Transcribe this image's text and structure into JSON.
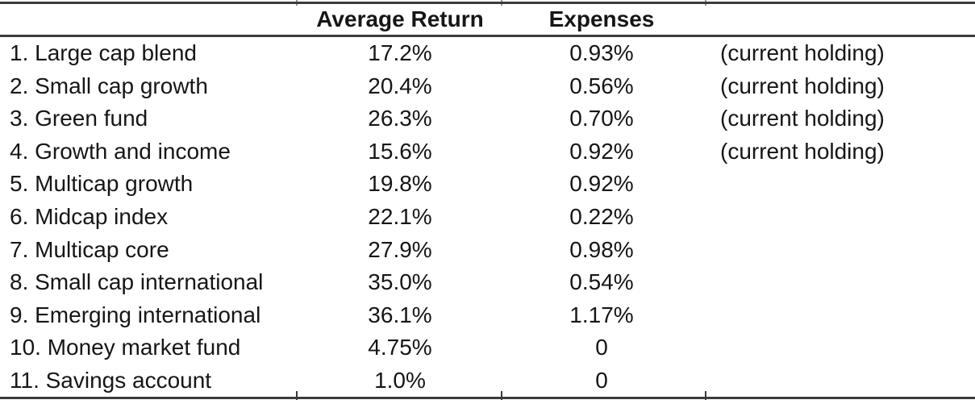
{
  "table": {
    "headers": {
      "name": "",
      "avg_return": "Average Return",
      "expenses": "Expenses",
      "note": ""
    },
    "rows": [
      {
        "name": "1. Large cap blend",
        "avg_return": "17.2%",
        "expenses": "0.93%",
        "note": "(current holding)"
      },
      {
        "name": "2. Small cap growth",
        "avg_return": "20.4%",
        "expenses": "0.56%",
        "note": "(current holding)"
      },
      {
        "name": "3. Green fund",
        "avg_return": "26.3%",
        "expenses": "0.70%",
        "note": "(current holding)"
      },
      {
        "name": "4. Growth and income",
        "avg_return": "15.6%",
        "expenses": "0.92%",
        "note": "(current holding)"
      },
      {
        "name": "5. Multicap growth",
        "avg_return": "19.8%",
        "expenses": "0.92%",
        "note": ""
      },
      {
        "name": "6. Midcap index",
        "avg_return": "22.1%",
        "expenses": "0.22%",
        "note": ""
      },
      {
        "name": "7. Multicap core",
        "avg_return": "27.9%",
        "expenses": "0.98%",
        "note": ""
      },
      {
        "name": "8. Small cap international",
        "avg_return": "35.0%",
        "expenses": "0.54%",
        "note": ""
      },
      {
        "name": "9. Emerging international",
        "avg_return": "36.1%",
        "expenses": "1.17%",
        "note": ""
      },
      {
        "name": "10. Money market fund",
        "avg_return": "4.75%",
        "expenses": "0",
        "note": ""
      },
      {
        "name": "11. Savings account",
        "avg_return": "1.0%",
        "expenses": "0",
        "note": ""
      }
    ],
    "colors": {
      "rule": "#3c3c3c",
      "text": "#161616",
      "background": "#ffffff"
    }
  }
}
